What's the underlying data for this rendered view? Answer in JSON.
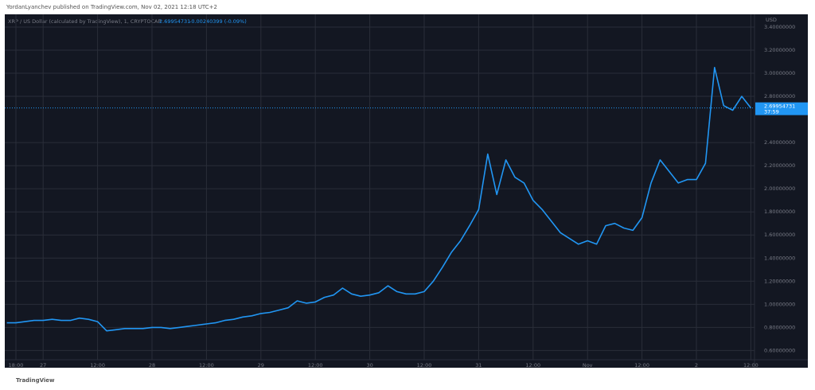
{
  "header": {
    "attribution": "YordanLyanchev published on TradingView.com, Nov 02, 2021 12:18 UTC+2"
  },
  "footer": {
    "brand": "TradingView"
  },
  "chart_data": {
    "type": "line",
    "legend": {
      "symbol": "XRP / US Dollar (calculated by TradingView), 1, CRYPTOCAP",
      "last": "2.69954731",
      "change": "-0.00240399 (-0.09%)"
    },
    "y_axis_label": "USD",
    "last_price": {
      "value": 2.69954731,
      "label": "2.69954731"
    },
    "countdown": "37:59",
    "grid": true,
    "ylim": [
      0.52,
      3.51
    ],
    "yticks": [
      {
        "value": 0.6,
        "label": "0.60000000"
      },
      {
        "value": 0.8,
        "label": "0.80000000"
      },
      {
        "value": 1.0,
        "label": "1.00000000"
      },
      {
        "value": 1.2,
        "label": "1.20000000"
      },
      {
        "value": 1.4,
        "label": "1.40000000"
      },
      {
        "value": 1.6,
        "label": "1.60000000"
      },
      {
        "value": 1.8,
        "label": "1.80000000"
      },
      {
        "value": 2.0,
        "label": "2.00000000"
      },
      {
        "value": 2.2,
        "label": "2.20000000"
      },
      {
        "value": 2.4,
        "label": "2.40000000"
      },
      {
        "value": 2.8,
        "label": "2.80000000"
      },
      {
        "value": 3.0,
        "label": "3.00000000"
      },
      {
        "value": 3.2,
        "label": "3.20000000"
      },
      {
        "value": 3.4,
        "label": "3.40000000"
      }
    ],
    "categories": [
      null,
      "18:00",
      null,
      null,
      "27",
      null,
      null,
      null,
      null,
      null,
      "12:00",
      null,
      null,
      null,
      null,
      null,
      "28",
      null,
      null,
      null,
      null,
      null,
      "12:00",
      null,
      null,
      null,
      null,
      null,
      "29",
      null,
      null,
      null,
      null,
      null,
      "12:00",
      null,
      null,
      null,
      null,
      null,
      "30",
      null,
      null,
      null,
      null,
      null,
      "12:00",
      null,
      null,
      null,
      null,
      null,
      "31",
      null,
      null,
      null,
      null,
      null,
      "12:00",
      null,
      null,
      null,
      null,
      null,
      "Nov",
      null,
      null,
      null,
      null,
      null,
      "12:00",
      null,
      null,
      null,
      null,
      null,
      "2",
      null,
      null,
      null,
      null,
      null,
      "12:00"
    ],
    "series": [
      {
        "name": "XRP / US Dollar",
        "color": "#2196f3",
        "values": [
          0.84,
          0.84,
          0.85,
          0.86,
          0.86,
          0.87,
          0.86,
          0.86,
          0.88,
          0.87,
          0.85,
          0.77,
          0.78,
          0.79,
          0.79,
          0.79,
          0.8,
          0.8,
          0.79,
          0.8,
          0.81,
          0.82,
          0.83,
          0.84,
          0.86,
          0.87,
          0.89,
          0.9,
          0.92,
          0.93,
          0.95,
          0.97,
          1.03,
          1.01,
          1.02,
          1.06,
          1.08,
          1.14,
          1.09,
          1.07,
          1.08,
          1.1,
          1.16,
          1.11,
          1.09,
          1.09,
          1.11,
          1.2,
          1.32,
          1.45,
          1.55,
          1.68,
          1.82,
          2.3,
          1.95,
          2.25,
          2.1,
          2.05,
          1.9,
          1.82,
          1.72,
          1.62,
          1.57,
          1.52,
          1.55,
          1.52,
          1.68,
          1.7,
          1.66,
          1.64,
          1.75,
          2.05,
          2.25,
          2.15,
          2.05,
          2.08,
          2.08,
          2.22,
          3.05,
          2.72,
          2.68,
          2.8,
          2.7
        ]
      }
    ]
  }
}
